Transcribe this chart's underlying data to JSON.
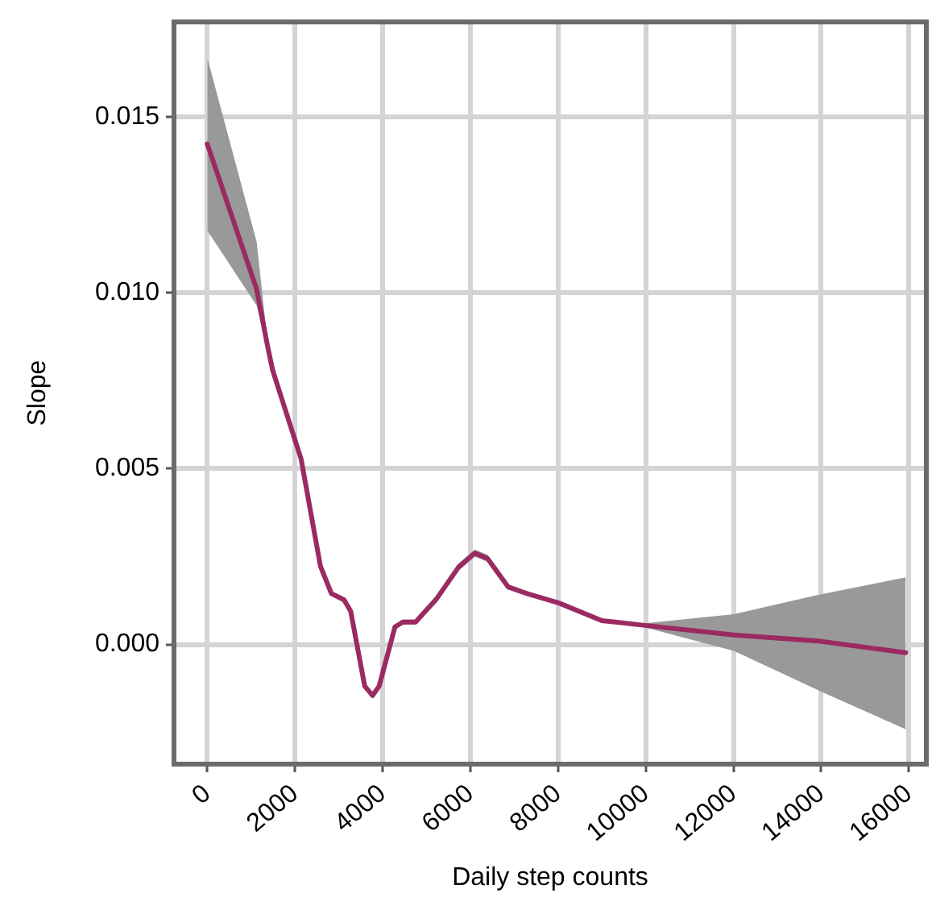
{
  "chart_data": {
    "type": "line",
    "xlabel": "Daily step counts",
    "ylabel": "Slope",
    "xlim": [
      -760,
      16400
    ],
    "ylim": [
      -0.0034,
      0.0177
    ],
    "xticks": [
      0,
      2000,
      4000,
      6000,
      8000,
      10000,
      12000,
      14000,
      16000
    ],
    "yticks": [
      {
        "value": 0,
        "label": "0.000"
      },
      {
        "value": 0.005,
        "label": "0.005"
      },
      {
        "value": 0.01,
        "label": "0.010"
      },
      {
        "value": 0.015,
        "label": "0.015"
      }
    ],
    "grid": true,
    "legend": false,
    "marker": "none",
    "line_style": "solid",
    "series": [
      {
        "color": "#9b2a62",
        "x": [
          0,
          1125,
          1380,
          1490,
          2140,
          2580,
          2830,
          3120,
          3270,
          3590,
          3770,
          3920,
          4280,
          4460,
          4750,
          5230,
          5730,
          6100,
          6390,
          6860,
          7290,
          8020,
          9000,
          9940,
          12010,
          13930,
          15930
        ],
        "values": [
          0.01423,
          0.0101,
          0.00845,
          0.0078,
          0.00527,
          0.00223,
          0.00145,
          0.00127,
          0.00095,
          -0.00118,
          -0.00145,
          -0.00118,
          0.0005,
          0.00064,
          0.00064,
          0.0013,
          0.0022,
          0.0026,
          0.00245,
          0.00164,
          0.00145,
          0.00118,
          0.00068,
          0.00055,
          0.00027,
          0.0001,
          -0.00023
        ],
        "lower": [
          0.01177,
          0.00964,
          0.00835,
          0.0077,
          0.0052,
          0.00216,
          0.00138,
          0.0012,
          0.00088,
          -0.00125,
          -0.00152,
          -0.00125,
          0.00043,
          0.00057,
          0.00057,
          0.0012,
          0.0021,
          0.0025,
          0.00235,
          0.00157,
          0.0014,
          0.00113,
          0.00063,
          0.0005,
          -0.00018,
          -0.0013,
          -0.00241
        ],
        "upper": [
          0.01668,
          0.01145,
          0.00855,
          0.0079,
          0.00534,
          0.0023,
          0.00152,
          0.00134,
          0.00102,
          -0.00111,
          -0.00138,
          -0.00111,
          0.00057,
          0.00071,
          0.00071,
          0.0014,
          0.0023,
          0.0027,
          0.00255,
          0.00171,
          0.0015,
          0.00123,
          0.00073,
          0.0006,
          0.00086,
          0.00141,
          0.00191
        ]
      }
    ]
  }
}
